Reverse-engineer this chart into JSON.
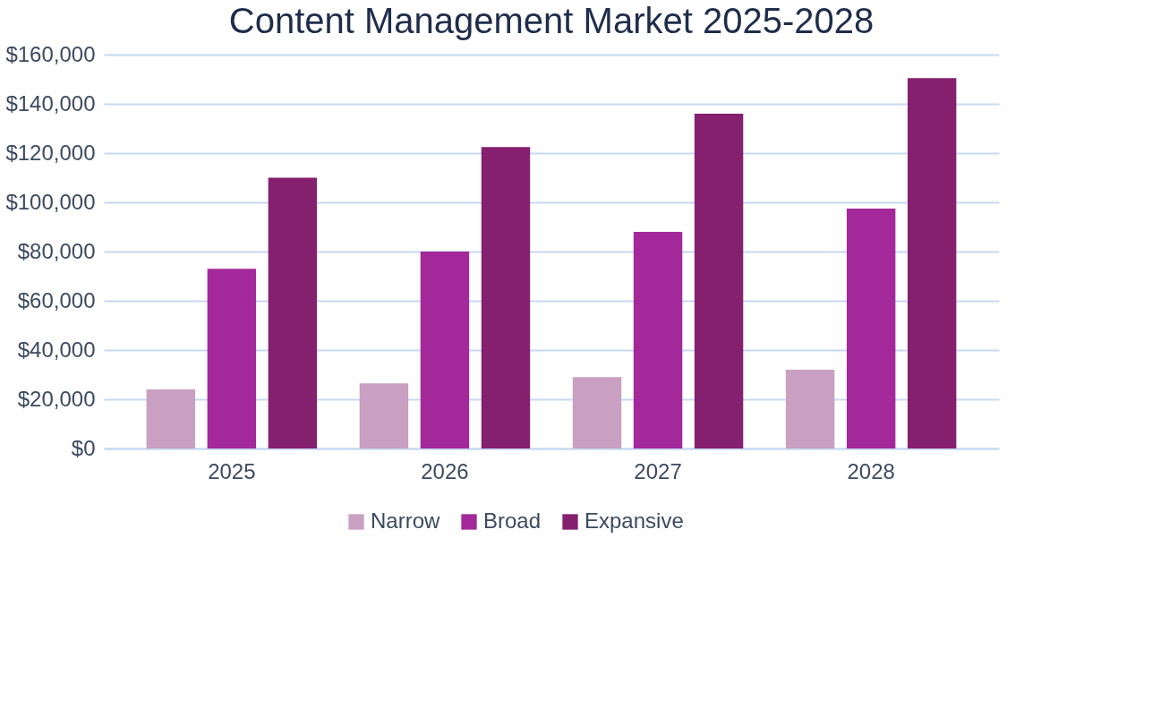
{
  "chart_data": {
    "type": "bar",
    "title": "Content Management Market 2025-2028",
    "categories": [
      "2025",
      "2026",
      "2027",
      "2028"
    ],
    "series": [
      {
        "name": "Narrow",
        "color": "#c9a0c2",
        "values": [
          24000,
          26500,
          29000,
          32000
        ]
      },
      {
        "name": "Broad",
        "color": "#a3299a",
        "values": [
          73000,
          80000,
          88000,
          97500
        ]
      },
      {
        "name": "Expansive",
        "color": "#85206f",
        "values": [
          110000,
          122500,
          136000,
          150500
        ]
      }
    ],
    "ylim": [
      0,
      160000
    ],
    "yticks": [
      {
        "value": 0,
        "label": "$0"
      },
      {
        "value": 20000,
        "label": "$20,000"
      },
      {
        "value": 40000,
        "label": "$40,000"
      },
      {
        "value": 60000,
        "label": "$60,000"
      },
      {
        "value": 80000,
        "label": "$80,000"
      },
      {
        "value": 100000,
        "label": "$100,000"
      },
      {
        "value": 120000,
        "label": "$120,000"
      },
      {
        "value": 140000,
        "label": "$140,000"
      },
      {
        "value": 160000,
        "label": "$160,000"
      }
    ],
    "grid": "y",
    "legend": "bottom"
  }
}
